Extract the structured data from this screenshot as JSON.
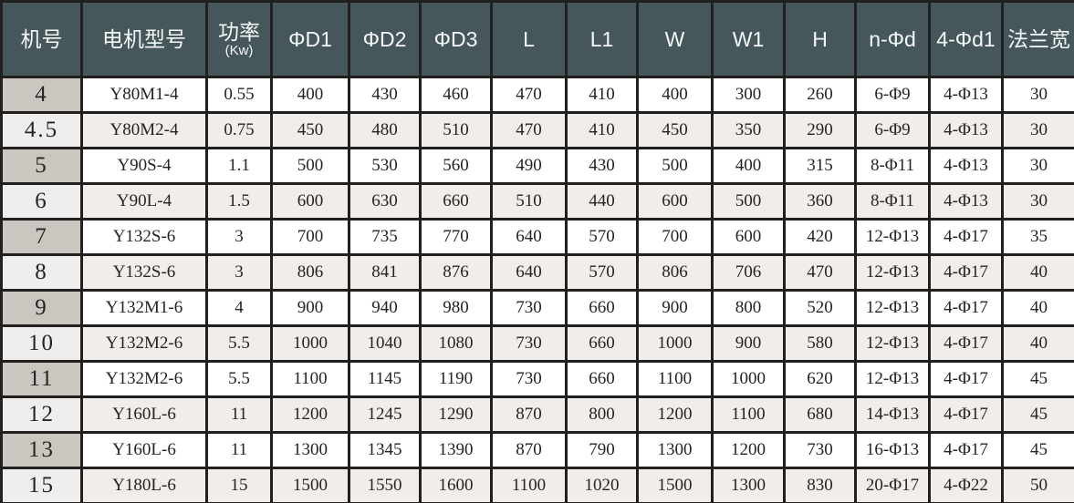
{
  "table": {
    "columns": [
      {
        "label": "机号",
        "sub": ""
      },
      {
        "label": "电机型号",
        "sub": ""
      },
      {
        "label": "功率",
        "sub": "(Kw)"
      },
      {
        "label": "ΦD1",
        "sub": ""
      },
      {
        "label": "ΦD2",
        "sub": ""
      },
      {
        "label": "ΦD3",
        "sub": ""
      },
      {
        "label": "L",
        "sub": ""
      },
      {
        "label": "L1",
        "sub": ""
      },
      {
        "label": "W",
        "sub": ""
      },
      {
        "label": "W1",
        "sub": ""
      },
      {
        "label": "H",
        "sub": ""
      },
      {
        "label": "n-Φd",
        "sub": ""
      },
      {
        "label": "4-Φd1",
        "sub": ""
      },
      {
        "label": "法兰宽",
        "sub": ""
      }
    ],
    "rows": [
      [
        "4",
        "Y80M1-4",
        "0.55",
        "400",
        "430",
        "460",
        "470",
        "410",
        "400",
        "300",
        "260",
        "6-Φ9",
        "4-Φ13",
        "30"
      ],
      [
        "4.5",
        "Y80M2-4",
        "0.75",
        "450",
        "480",
        "510",
        "470",
        "410",
        "450",
        "350",
        "290",
        "6-Φ9",
        "4-Φ13",
        "30"
      ],
      [
        "5",
        "Y90S-4",
        "1.1",
        "500",
        "530",
        "560",
        "490",
        "430",
        "500",
        "400",
        "315",
        "8-Φ11",
        "4-Φ13",
        "30"
      ],
      [
        "6",
        "Y90L-4",
        "1.5",
        "600",
        "630",
        "660",
        "510",
        "440",
        "600",
        "500",
        "360",
        "8-Φ11",
        "4-Φ13",
        "30"
      ],
      [
        "7",
        "Y132S-6",
        "3",
        "700",
        "735",
        "770",
        "640",
        "570",
        "700",
        "600",
        "420",
        "12-Φ13",
        "4-Φ17",
        "35"
      ],
      [
        "8",
        "Y132S-6",
        "3",
        "806",
        "841",
        "876",
        "640",
        "570",
        "806",
        "706",
        "470",
        "12-Φ13",
        "4-Φ17",
        "40"
      ],
      [
        "9",
        "Y132M1-6",
        "4",
        "900",
        "940",
        "980",
        "730",
        "660",
        "900",
        "800",
        "520",
        "12-Φ13",
        "4-Φ17",
        "40"
      ],
      [
        "10",
        "Y132M2-6",
        "5.5",
        "1000",
        "1040",
        "1080",
        "730",
        "660",
        "1000",
        "900",
        "580",
        "12-Φ13",
        "4-Φ17",
        "40"
      ],
      [
        "11",
        "Y132M2-6",
        "5.5",
        "1100",
        "1145",
        "1190",
        "730",
        "660",
        "1100",
        "1000",
        "620",
        "12-Φ13",
        "4-Φ17",
        "45"
      ],
      [
        "12",
        "Y160L-6",
        "11",
        "1200",
        "1245",
        "1290",
        "870",
        "800",
        "1200",
        "1100",
        "680",
        "14-Φ13",
        "4-Φ17",
        "45"
      ],
      [
        "13",
        "Y160L-6",
        "11",
        "1300",
        "1345",
        "1390",
        "870",
        "790",
        "1300",
        "1200",
        "730",
        "16-Φ13",
        "4-Φ17",
        "45"
      ],
      [
        "15",
        "Y180L-6",
        "15",
        "1500",
        "1550",
        "1600",
        "1100",
        "1020",
        "1500",
        "1300",
        "830",
        "20-Φ17",
        "4-Φ22",
        "50"
      ]
    ]
  },
  "colors": {
    "header_background": "#45575b",
    "header_text": "#f6f8f8",
    "row_shaded": "#f0edeb",
    "rowhead_dark": "#ccc6c0",
    "rowhead_light": "#f0eeec",
    "border": "#22201e"
  }
}
